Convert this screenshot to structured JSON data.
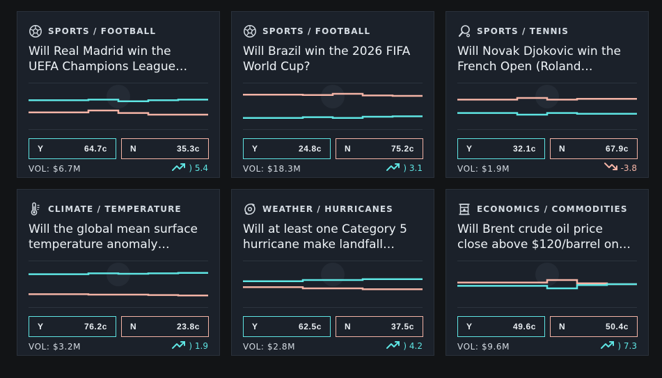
{
  "colors": {
    "yes": "#5fe6e4",
    "no": "#f4b4a6",
    "card": "#1b212a",
    "background": "#121416"
  },
  "markets": [
    {
      "icon": "soccer-ball-icon",
      "category": "SPORTS / FOOTBALL",
      "title_line1": "Will Real Madrid win the",
      "title_line2": "UEFA Champions League…",
      "yes_label": "Y",
      "yes_price": "64.7c",
      "no_label": "N",
      "no_price": "35.3c",
      "volume": "VOL: $6.7M",
      "change": ") 5.4",
      "direction": "up",
      "yes_series": [
        0.647,
        0.647,
        0.66,
        0.62,
        0.647,
        0.66
      ],
      "no_series": [
        0.353,
        0.353,
        0.4,
        0.34,
        0.3,
        0.3
      ]
    },
    {
      "icon": "soccer-ball-icon",
      "category": "SPORTS / FOOTBALL",
      "title_line1": "Will Brazil win the 2026 FIFA",
      "title_line2": "World Cup?",
      "yes_label": "Y",
      "yes_price": "24.8c",
      "no_label": "N",
      "no_price": "75.2c",
      "volume": "VOL: $18.3M",
      "change": ") 3.1",
      "direction": "up",
      "yes_series": [
        0.22,
        0.22,
        0.24,
        0.22,
        0.25,
        0.26
      ],
      "no_series": [
        0.78,
        0.78,
        0.77,
        0.8,
        0.76,
        0.75
      ]
    },
    {
      "icon": "tennis-racket-icon",
      "category": "SPORTS / TENNIS",
      "title_line1": "Will Novak Djokovic win the",
      "title_line2": "French Open (Roland…",
      "yes_label": "Y",
      "yes_price": "32.1c",
      "no_label": "N",
      "no_price": "67.9c",
      "volume": "VOL: $1.9M",
      "change": "-3.8",
      "direction": "down",
      "yes_series": [
        0.34,
        0.34,
        0.3,
        0.34,
        0.32,
        0.32
      ],
      "no_series": [
        0.66,
        0.66,
        0.7,
        0.66,
        0.68,
        0.68
      ]
    },
    {
      "icon": "thermometer-icon",
      "category": "CLIMATE / TEMPERATURE",
      "title_line1": "Will the global mean surface",
      "title_line2": "temperature anomaly…",
      "yes_label": "Y",
      "yes_price": "76.2c",
      "no_label": "N",
      "no_price": "23.8c",
      "volume": "VOL: $3.2M",
      "change": ") 1.9",
      "direction": "up",
      "yes_series": [
        0.74,
        0.74,
        0.76,
        0.75,
        0.76,
        0.77
      ],
      "no_series": [
        0.26,
        0.26,
        0.25,
        0.25,
        0.24,
        0.23
      ]
    },
    {
      "icon": "hurricane-icon",
      "category": "WEATHER / HURRICANES",
      "title_line1": "Will at least one Category 5",
      "title_line2": "hurricane make landfall…",
      "yes_label": "Y",
      "yes_price": "62.5c",
      "no_label": "N",
      "no_price": "37.5c",
      "volume": "VOL: $2.8M",
      "change": ") 4.2",
      "direction": "up",
      "yes_series": [
        0.57,
        0.57,
        0.6,
        0.6,
        0.62,
        0.62
      ],
      "no_series": [
        0.43,
        0.43,
        0.4,
        0.4,
        0.38,
        0.38
      ]
    },
    {
      "icon": "oil-barrel-icon",
      "category": "ECONOMICS / COMMODITIES",
      "title_line1": "Will Brent crude oil price",
      "title_line2": "close above $120/barrel on…",
      "yes_label": "Y",
      "yes_price": "49.6c",
      "no_label": "N",
      "no_price": "50.4c",
      "volume": "VOL: $9.6M",
      "change": ") 7.3",
      "direction": "up",
      "yes_series": [
        0.46,
        0.46,
        0.46,
        0.4,
        0.48,
        0.5
      ],
      "no_series": [
        0.54,
        0.54,
        0.54,
        0.6,
        0.52,
        0.5
      ]
    }
  ]
}
